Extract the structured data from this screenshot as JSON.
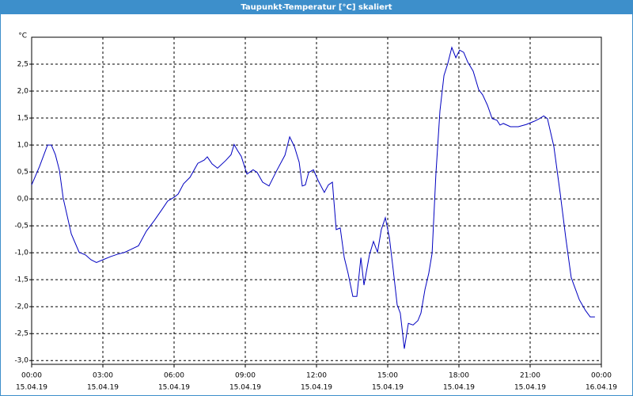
{
  "chart_data": {
    "type": "line",
    "title": "Taupunkt-Temperatur [°C] skaliert",
    "y_unit": "°C",
    "color": "#0000c0",
    "grid": true,
    "x": [
      0,
      0.33,
      0.67,
      0.83,
      1.0,
      1.17,
      1.33,
      1.67,
      2.0,
      2.27,
      2.5,
      2.73,
      3.0,
      3.33,
      3.6,
      3.93,
      4.17,
      4.5,
      4.83,
      5.17,
      5.5,
      5.73,
      6.0,
      6.17,
      6.4,
      6.67,
      7.0,
      7.27,
      7.4,
      7.6,
      7.83,
      8.17,
      8.4,
      8.53,
      8.67,
      8.83,
      9.07,
      9.33,
      9.5,
      9.73,
      10.0,
      10.33,
      10.67,
      10.87,
      11.07,
      11.27,
      11.4,
      11.53,
      11.67,
      11.87,
      12.07,
      12.33,
      12.5,
      12.67,
      12.83,
      13.0,
      13.17,
      13.33,
      13.53,
      13.7,
      13.87,
      14.0,
      14.23,
      14.4,
      14.57,
      14.73,
      14.9,
      15.07,
      15.23,
      15.4,
      15.53,
      15.7,
      15.87,
      16.07,
      16.27,
      16.4,
      16.57,
      16.73,
      16.87,
      17.03,
      17.2,
      17.37,
      17.53,
      17.7,
      17.87,
      18.03,
      18.2,
      18.37,
      18.6,
      18.83,
      19.0,
      19.2,
      19.4,
      19.6,
      19.73,
      19.87,
      20.17,
      20.5,
      20.83,
      21.17,
      21.4,
      21.57,
      21.73,
      22.0,
      22.27,
      22.5,
      22.73,
      23.07,
      23.33,
      23.53,
      23.73
    ],
    "values": [
      0.26,
      0.6,
      1.0,
      1.0,
      0.82,
      0.53,
      0.01,
      -0.65,
      -0.99,
      -1.04,
      -1.13,
      -1.18,
      -1.13,
      -1.07,
      -1.03,
      -0.99,
      -0.94,
      -0.87,
      -0.6,
      -0.4,
      -0.19,
      -0.04,
      0.03,
      0.09,
      0.28,
      0.4,
      0.66,
      0.72,
      0.78,
      0.65,
      0.57,
      0.71,
      0.82,
      1.01,
      0.9,
      0.79,
      0.46,
      0.54,
      0.49,
      0.31,
      0.24,
      0.53,
      0.81,
      1.15,
      0.97,
      0.68,
      0.24,
      0.26,
      0.49,
      0.54,
      0.34,
      0.12,
      0.26,
      0.31,
      -0.57,
      -0.54,
      -1.09,
      -1.38,
      -1.81,
      -1.81,
      -1.09,
      -1.6,
      -1.04,
      -0.79,
      -0.99,
      -0.57,
      -0.35,
      -0.72,
      -1.31,
      -1.97,
      -2.12,
      -2.78,
      -2.31,
      -2.34,
      -2.26,
      -2.12,
      -1.68,
      -1.38,
      -1.01,
      0.46,
      1.63,
      2.29,
      2.51,
      2.81,
      2.62,
      2.76,
      2.72,
      2.54,
      2.37,
      2.03,
      1.93,
      1.74,
      1.49,
      1.46,
      1.37,
      1.4,
      1.34,
      1.34,
      1.38,
      1.44,
      1.49,
      1.54,
      1.49,
      0.97,
      0.09,
      -0.72,
      -1.46,
      -1.87,
      -2.07,
      -2.19,
      -2.19
    ],
    "xlim": [
      0,
      24
    ],
    "xticks": [
      {
        "value": 0,
        "label": "00:00"
      },
      {
        "value": 3,
        "label": "03:00"
      },
      {
        "value": 6,
        "label": "06:00"
      },
      {
        "value": 9,
        "label": "09:00"
      },
      {
        "value": 12,
        "label": "12:00"
      },
      {
        "value": 15,
        "label": "15:00"
      },
      {
        "value": 18,
        "label": "18:00"
      },
      {
        "value": 21,
        "label": "21:00"
      },
      {
        "value": 24,
        "label": "00:00"
      }
    ],
    "xtick_dates": [
      "15.04.19",
      "15.04.19",
      "15.04.19",
      "15.04.19",
      "15.04.19",
      "15.04.19",
      "15.04.19",
      "15.04.19",
      "16.04.19"
    ],
    "ylim": [
      -3.07,
      3.0
    ],
    "yticks": [
      {
        "value": -3.0,
        "label": "-3,0"
      },
      {
        "value": -2.5,
        "label": "-2,5"
      },
      {
        "value": -2.0,
        "label": "-2,0"
      },
      {
        "value": -1.5,
        "label": "-1,5"
      },
      {
        "value": -1.0,
        "label": "-1,0"
      },
      {
        "value": -0.5,
        "label": "-0,5"
      },
      {
        "value": 0,
        "label": "0,0"
      },
      {
        "value": 0.5,
        "label": "0,5"
      },
      {
        "value": 1.0,
        "label": "1,0"
      },
      {
        "value": 1.5,
        "label": "1,5"
      },
      {
        "value": 2.0,
        "label": "2,0"
      },
      {
        "value": 2.5,
        "label": "2,5"
      }
    ]
  }
}
